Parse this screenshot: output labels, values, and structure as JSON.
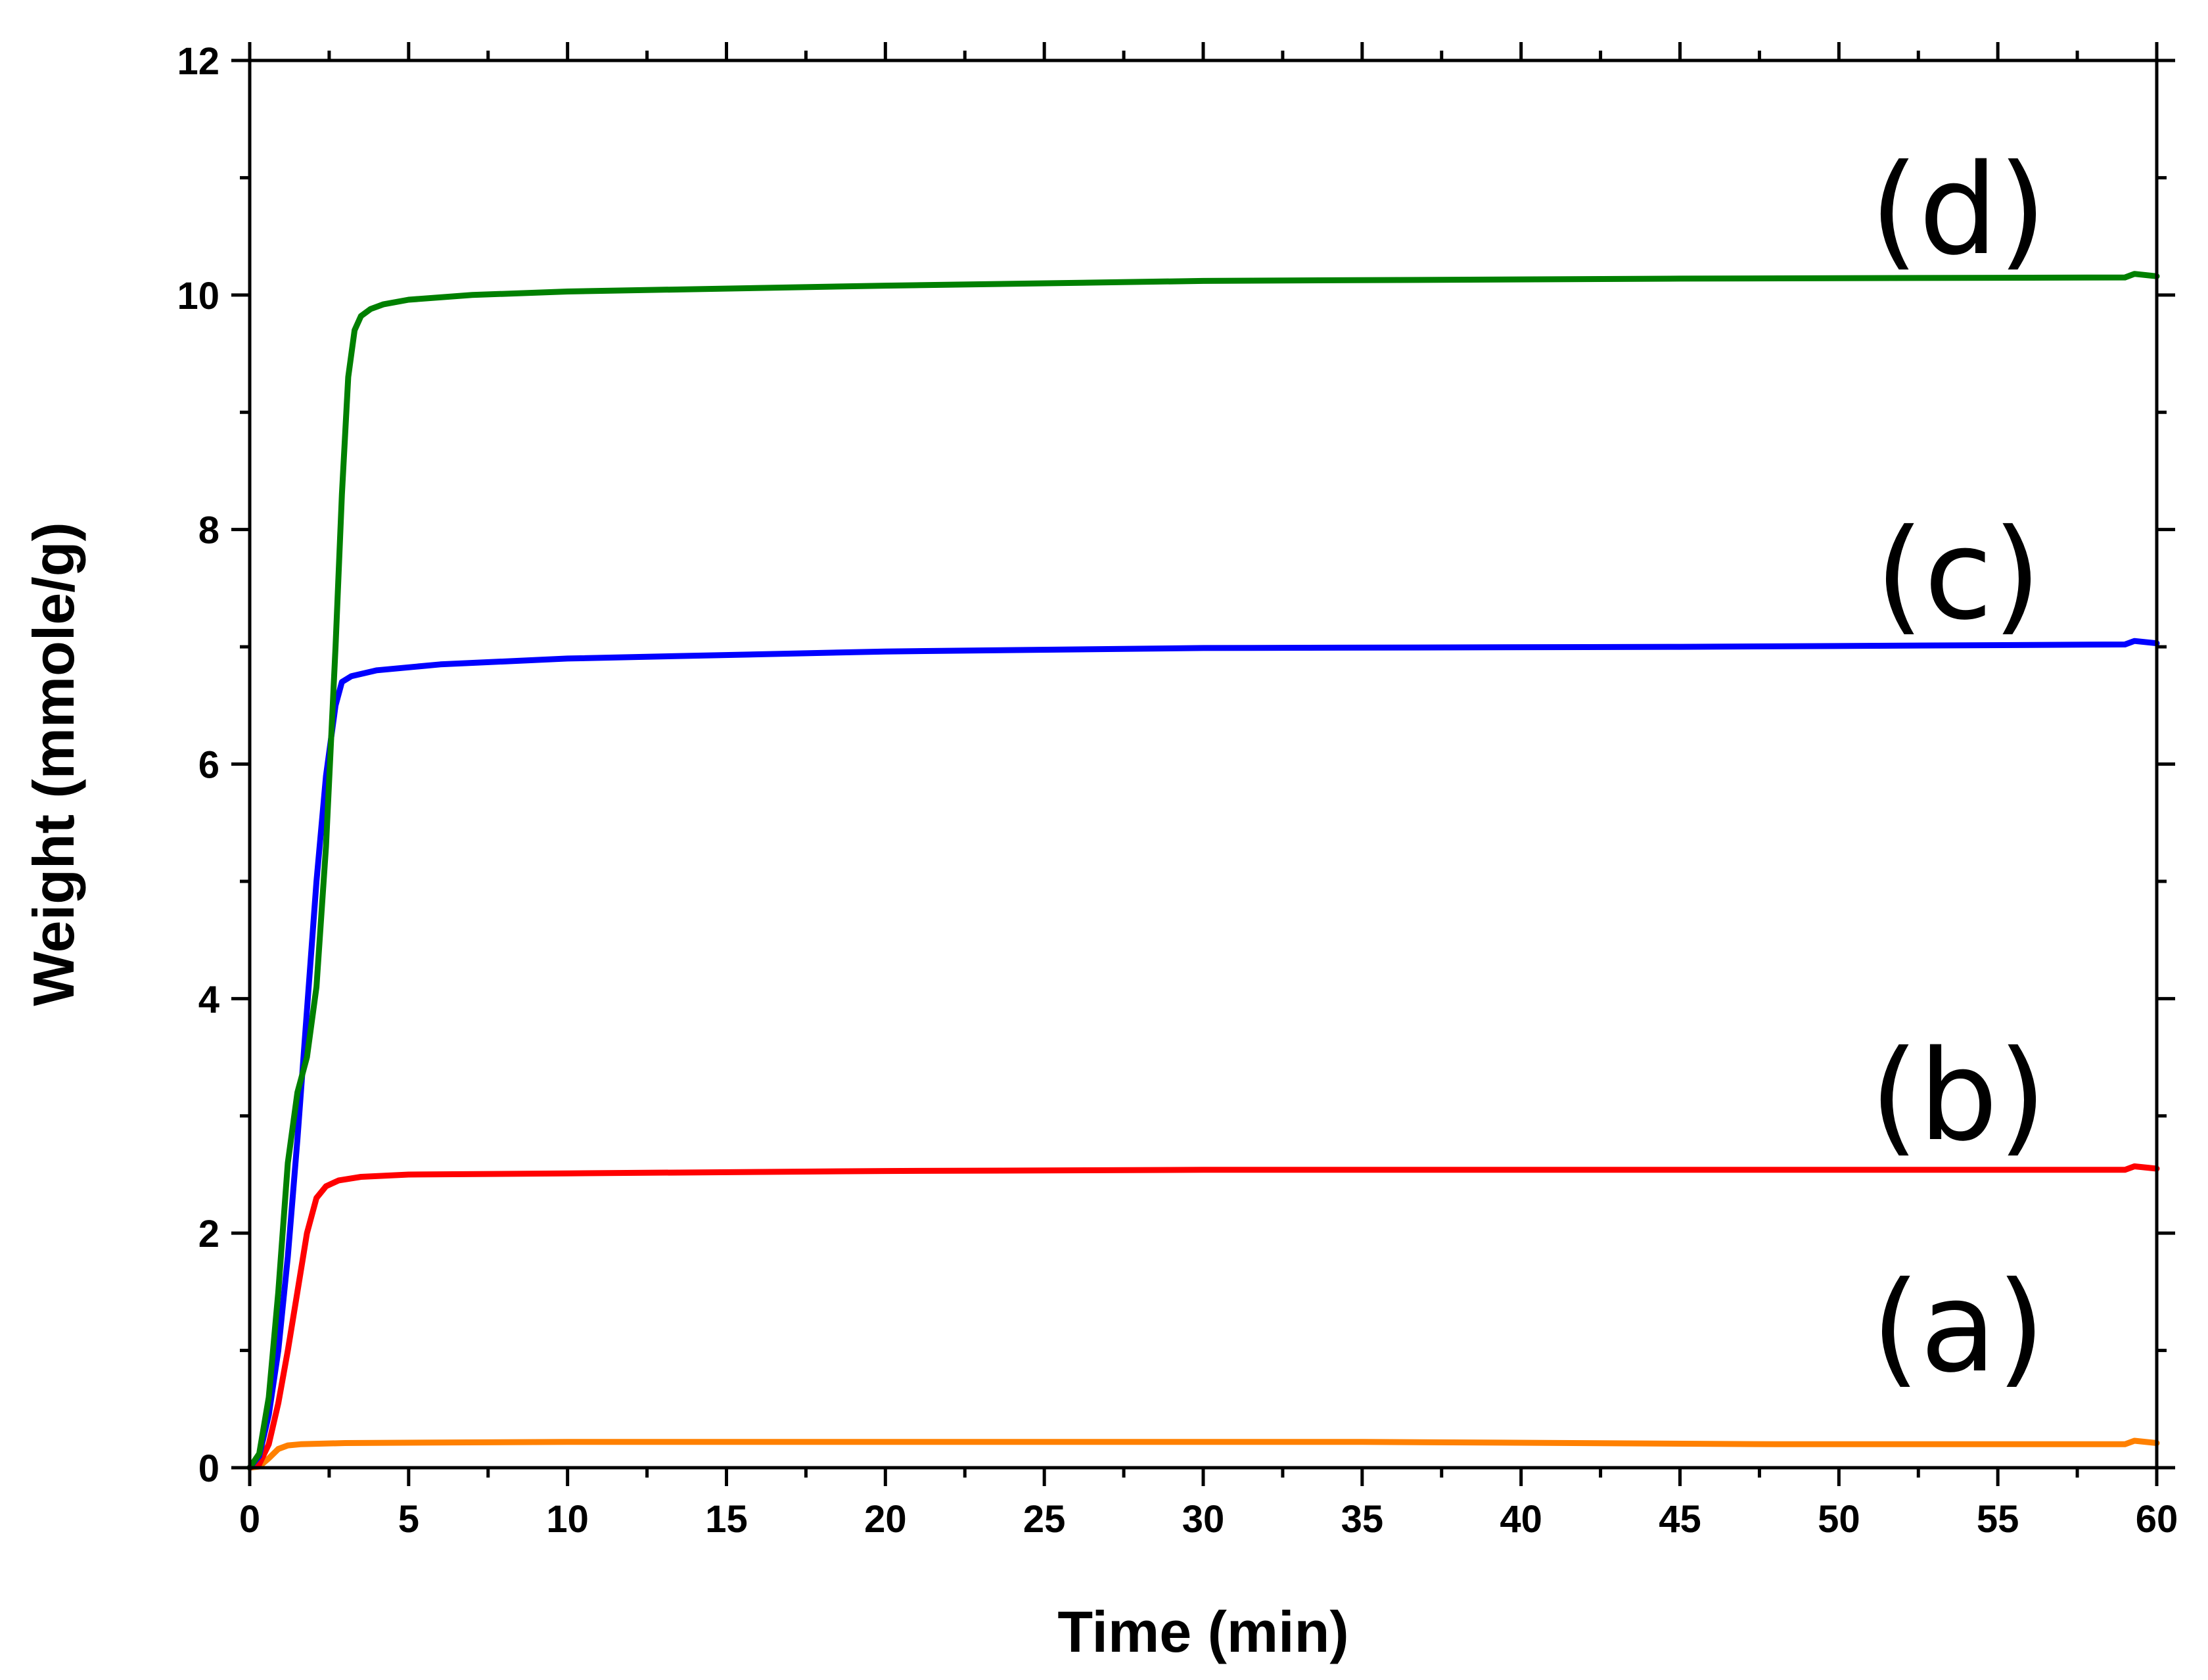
{
  "chart_data": {
    "type": "line",
    "title": "",
    "xlabel": "Time (min)",
    "ylabel": "Weight  (mmole/g)",
    "xlim": [
      0,
      60
    ],
    "ylim": [
      0,
      12
    ],
    "x_ticks": [
      "0",
      "5",
      "10",
      "15",
      "20",
      "25",
      "30",
      "35",
      "40",
      "45",
      "50",
      "55",
      "60"
    ],
    "y_ticks": [
      "0",
      "2",
      "4",
      "6",
      "8",
      "10",
      "12"
    ],
    "grid": false,
    "legend": "none",
    "series": [
      {
        "name": "(a)",
        "label": "(a)",
        "color": "#FF8000",
        "x": [
          0,
          0.3,
          0.6,
          0.9,
          1.2,
          1.6,
          3,
          10,
          20,
          35,
          48,
          55,
          59,
          59.3,
          60
        ],
        "y": [
          0,
          0.01,
          0.08,
          0.16,
          0.19,
          0.2,
          0.21,
          0.22,
          0.22,
          0.22,
          0.2,
          0.2,
          0.2,
          0.23,
          0.21
        ]
      },
      {
        "name": "(b)",
        "label": "(b)",
        "color": "#FF0000",
        "x": [
          0,
          0.3,
          0.6,
          0.9,
          1.2,
          1.5,
          1.8,
          2.1,
          2.4,
          2.8,
          3.5,
          5,
          10,
          20,
          30,
          45,
          59,
          59.3,
          60
        ],
        "y": [
          0,
          0.03,
          0.2,
          0.55,
          1.0,
          1.5,
          2.0,
          2.3,
          2.4,
          2.45,
          2.48,
          2.5,
          2.51,
          2.53,
          2.54,
          2.54,
          2.54,
          2.57,
          2.55
        ]
      },
      {
        "name": "(c)",
        "label": "(c)",
        "color": "#0000FF",
        "x": [
          0,
          0.3,
          0.6,
          0.9,
          1.2,
          1.5,
          1.8,
          2.1,
          2.4,
          2.7,
          2.9,
          3.2,
          4,
          6,
          10,
          20,
          30,
          45,
          59,
          59.3,
          60
        ],
        "y": [
          0,
          0.1,
          0.45,
          1.0,
          1.8,
          2.8,
          3.9,
          5.0,
          5.9,
          6.5,
          6.7,
          6.75,
          6.8,
          6.85,
          6.9,
          6.96,
          6.99,
          7.0,
          7.02,
          7.05,
          7.03
        ]
      },
      {
        "name": "(d)",
        "label": "(d)",
        "color": "#008000",
        "x": [
          0,
          0.3,
          0.6,
          0.9,
          1.2,
          1.5,
          1.8,
          2.1,
          2.4,
          2.7,
          2.9,
          3.1,
          3.3,
          3.5,
          3.8,
          4.2,
          5,
          7,
          10,
          20,
          30,
          45,
          59,
          59.3,
          60
        ],
        "y": [
          0,
          0.12,
          0.6,
          1.5,
          2.6,
          3.2,
          3.5,
          4.1,
          5.3,
          7.0,
          8.3,
          9.3,
          9.7,
          9.82,
          9.88,
          9.92,
          9.96,
          10.0,
          10.03,
          10.08,
          10.12,
          10.14,
          10.15,
          10.18,
          10.16
        ]
      }
    ]
  }
}
